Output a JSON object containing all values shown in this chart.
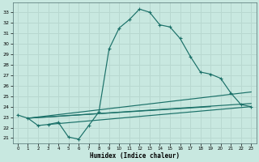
{
  "xlabel": "Humidex (Indice chaleur)",
  "bg_color": "#c8e8e0",
  "grid_color": "#b8d8d0",
  "line_color": "#1a7068",
  "xlim": [
    -0.5,
    23.5
  ],
  "ylim": [
    20.5,
    33.9
  ],
  "xticks": [
    0,
    1,
    2,
    3,
    4,
    5,
    6,
    7,
    8,
    9,
    10,
    11,
    12,
    13,
    14,
    15,
    16,
    17,
    18,
    19,
    20,
    21,
    22,
    23
  ],
  "yticks": [
    21,
    22,
    23,
    24,
    25,
    26,
    27,
    28,
    29,
    30,
    31,
    32,
    33
  ],
  "line1_x": [
    0,
    1,
    2,
    3,
    4,
    5,
    6,
    7,
    8,
    9,
    10,
    11,
    12,
    13,
    14,
    15,
    16,
    17,
    18,
    19,
    20,
    21,
    22,
    23
  ],
  "line1_y": [
    23.2,
    22.9,
    22.2,
    22.3,
    22.5,
    21.1,
    20.9,
    22.2,
    23.5,
    29.5,
    31.5,
    32.3,
    33.3,
    33.0,
    31.8,
    31.6,
    30.5,
    28.8,
    27.3,
    27.1,
    26.7,
    25.3,
    24.2,
    24.0
  ],
  "line2_x": [
    1,
    23
  ],
  "line2_y": [
    22.9,
    24.3
  ],
  "line3_x": [
    1,
    23
  ],
  "line3_y": [
    22.9,
    25.4
  ],
  "line4_x": [
    1,
    19
  ],
  "line4_y": [
    22.9,
    24.0
  ],
  "line5_x": [
    3,
    23
  ],
  "line5_y": [
    22.3,
    24.0
  ]
}
